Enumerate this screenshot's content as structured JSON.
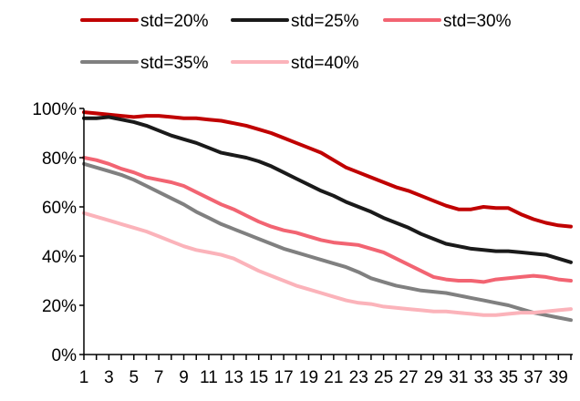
{
  "chart_data": {
    "type": "line",
    "title": "",
    "xlabel": "",
    "ylabel": "",
    "ylim": [
      0,
      100
    ],
    "y_ticks": [
      0,
      20,
      40,
      60,
      80,
      100
    ],
    "y_tick_labels": [
      "0%",
      "20%",
      "40%",
      "60%",
      "80%",
      "100%"
    ],
    "x": [
      1,
      2,
      3,
      4,
      5,
      6,
      7,
      8,
      9,
      10,
      11,
      12,
      13,
      14,
      15,
      16,
      17,
      18,
      19,
      20,
      21,
      22,
      23,
      24,
      25,
      26,
      27,
      28,
      29,
      30,
      31,
      32,
      33,
      34,
      35,
      36,
      37,
      38,
      39,
      40
    ],
    "x_tick_labels": [
      "1",
      "3",
      "5",
      "7",
      "9",
      "11",
      "13",
      "15",
      "17",
      "19",
      "21",
      "23",
      "25",
      "27",
      "29",
      "31",
      "33",
      "35",
      "37",
      "39"
    ],
    "grid": false,
    "legend_position": "top",
    "series": [
      {
        "name": "std=20%",
        "color": "#c00000",
        "values": [
          98.5,
          98,
          97.5,
          97,
          96.5,
          97,
          97,
          96.5,
          96,
          96,
          95.5,
          95,
          94,
          93,
          91.5,
          90,
          88,
          86,
          84,
          82,
          79,
          76,
          74,
          72,
          70,
          68,
          66.5,
          64.5,
          62.5,
          60.5,
          59,
          59,
          60,
          59.5,
          59.5,
          57,
          55,
          53.5,
          52.5,
          52
        ]
      },
      {
        "name": "std=25%",
        "color": "#1a1a1a",
        "values": [
          96,
          96,
          96.5,
          95.5,
          94.5,
          93,
          91,
          89,
          87.5,
          86,
          84,
          82,
          81,
          80,
          78.5,
          76.5,
          74,
          71.5,
          69,
          66.5,
          64.5,
          62,
          60,
          58,
          55.5,
          53.5,
          51.5,
          49,
          47,
          45,
          44,
          43,
          42.5,
          42,
          42,
          41.5,
          41,
          40.5,
          39,
          37.5
        ]
      },
      {
        "name": "std=30%",
        "color": "#f26472",
        "values": [
          80,
          79,
          77.5,
          75.5,
          74,
          72,
          71,
          70,
          68.5,
          66,
          63.5,
          61,
          59,
          56.5,
          54,
          52,
          50.5,
          49.5,
          48,
          46.5,
          45.5,
          45,
          44.5,
          43,
          41.5,
          39,
          36.5,
          34,
          31.5,
          30.5,
          30,
          30,
          29.5,
          30.5,
          31,
          31.5,
          32,
          31.5,
          30.5,
          30
        ]
      },
      {
        "name": "std=35%",
        "color": "#808080",
        "values": [
          77.5,
          76,
          74.5,
          73,
          71,
          68.5,
          66,
          63.5,
          61,
          58,
          55.5,
          53,
          51,
          49,
          47,
          45,
          43,
          41.5,
          40,
          38.5,
          37,
          35.5,
          33.5,
          31,
          29.5,
          28,
          27,
          26,
          25.5,
          25,
          24,
          23,
          22,
          21,
          20,
          18.5,
          17,
          16,
          15,
          14
        ]
      },
      {
        "name": "std=40%",
        "color": "#fbb3ba",
        "values": [
          57.5,
          56,
          54.5,
          53,
          51.5,
          50,
          48,
          46,
          44,
          42.5,
          41.5,
          40.5,
          39,
          36.5,
          34,
          32,
          30,
          28,
          26.5,
          25,
          23.5,
          22,
          21,
          20.5,
          19.5,
          19,
          18.5,
          18,
          17.5,
          17.5,
          17,
          16.5,
          16,
          16,
          16.5,
          17,
          17,
          17.5,
          18,
          18.5
        ]
      }
    ]
  }
}
